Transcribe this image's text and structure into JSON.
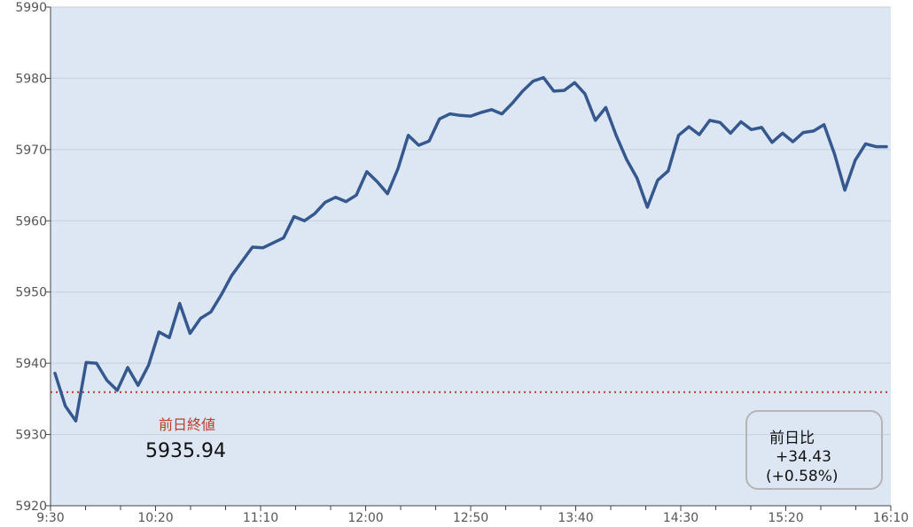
{
  "chart_data": {
    "type": "line",
    "x_ticks": [
      "9:30",
      "10:20",
      "11:10",
      "12:00",
      "12:50",
      "13:40",
      "14:30",
      "15:20",
      "16:10"
    ],
    "y_ticks": [
      5920,
      5930,
      5940,
      5950,
      5960,
      5970,
      5980,
      5990
    ],
    "ylim": [
      5920,
      5990
    ],
    "x_range": [
      "9:30",
      "16:10"
    ],
    "grid": "horizontal",
    "colors": {
      "plot_bg": "#dde6f3",
      "line": "#35598f",
      "reference": "#c0392b",
      "box_border": "#b5b5b5"
    },
    "series": [
      {
        "values": [
          5938.6,
          5934,
          5931.9,
          5940.1,
          5940,
          5937.6,
          5936.2,
          5939.4,
          5936.9,
          5939.7,
          5944.4,
          5943.6,
          5948.4,
          5944.2,
          5946.3,
          5947.2,
          5949.6,
          5952.3,
          5954.3,
          5956.3,
          5956.2,
          5956.9,
          5957.6,
          5960.6,
          5960,
          5961,
          5962.6,
          5963.3,
          5962.7,
          5963.6,
          5966.9,
          5965.5,
          5963.8,
          5967.3,
          5972,
          5970.6,
          5971.2,
          5974.3,
          5975,
          5974.8,
          5974.7,
          5975.2,
          5975.6,
          5975,
          5976.5,
          5978.2,
          5979.6,
          5980.1,
          5978.2,
          5978.3,
          5979.4,
          5977.8,
          5974.1,
          5975.9,
          5972,
          5968.6,
          5966,
          5961.9,
          5965.7,
          5967,
          5972,
          5973.2,
          5972.1,
          5974.1,
          5973.8,
          5972.3,
          5973.9,
          5972.8,
          5973.1,
          5971,
          5972.3,
          5971.1,
          5972.4,
          5972.6,
          5973.5,
          5969.4,
          5964.3,
          5968.5,
          5970.8,
          5970.4,
          5970.4
        ]
      }
    ],
    "reference_line": {
      "label": "前日終値",
      "value": 5935.94,
      "value_text": "5935.94"
    },
    "change_box": {
      "label": "前日比",
      "abs": "+34.43",
      "pct": "(+0.58%)"
    }
  }
}
